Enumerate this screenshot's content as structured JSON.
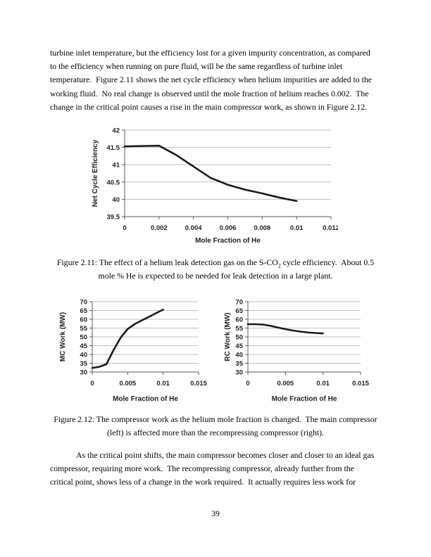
{
  "page": {
    "number": "39"
  },
  "body": {
    "para1_lines": [
      "turbine inlet temperature, but the efficiency lost for a given impurity concentration, as compared",
      "to the efficiency when running on pure fluid, will be the same regardless of turbine inlet",
      "temperature.  Figure 2.11 shows the net cycle efficiency when helium impurities are added to the",
      "working fluid.  No real change is observed until the mole fraction of helium reaches 0.002.  The",
      "change in the critical point causes a rise in the main compressor work, as shown in Figure 2.12."
    ],
    "para2_lines": [
      "As the critical point shifts, the main compressor becomes closer and closer to an ideal gas",
      "compressor, requiring more work.  The recompressing compressor, already further from the",
      "critical point, shows less of a change in the work required.  It actually requires less work for"
    ]
  },
  "figure_2_11": {
    "caption_line1_pre": "Figure 2.11: The effect of a helium leak detection gas on the S-CO",
    "caption_sub": "2",
    "caption_line1_post": " cycle efficiency.  About 0.5",
    "caption_line2": "mole % He is expected to be needed for leak detection in a large plant."
  },
  "figure_2_12": {
    "caption_line1": "Figure 2.12: The compressor work as the helium mole fraction is changed.  The main compressor",
    "caption_line2": "(left) is affected more than the recompressing compressor (right)."
  },
  "chart_data": [
    {
      "type": "line",
      "title": "",
      "xlabel": "Mole Fraction of He",
      "ylabel": "Net Cycle Efficiency",
      "xlim": [
        0,
        0.012
      ],
      "ylim": [
        39.5,
        42
      ],
      "x_ticks": [
        0,
        0.002,
        0.004,
        0.006,
        0.008,
        0.01,
        0.012
      ],
      "x_tick_labels": [
        "0",
        "0.002",
        "0.004",
        "0.006",
        "0.008",
        "0.01",
        "0.012"
      ],
      "y_ticks": [
        39.5,
        40,
        40.5,
        41,
        41.5,
        42
      ],
      "y_tick_labels": [
        "39.5",
        "40",
        "40.5",
        "41",
        "41.5",
        "42"
      ],
      "x": [
        0,
        0.001,
        0.002,
        0.003,
        0.004,
        0.005,
        0.006,
        0.007,
        0.008,
        0.009,
        0.01
      ],
      "y": [
        41.53,
        41.54,
        41.55,
        41.28,
        40.95,
        40.62,
        40.42,
        40.28,
        40.17,
        40.05,
        39.95
      ],
      "grid": true,
      "legend": false,
      "colors": {
        "line": "#1a1a1a",
        "grid": "#bfbfbf",
        "axis": "#595959"
      }
    },
    {
      "type": "line",
      "title": "",
      "xlabel": "Mole Fraction of He",
      "ylabel": "MC Work (MW)",
      "xlim": [
        0,
        0.015
      ],
      "ylim": [
        30,
        70
      ],
      "x_ticks": [
        0,
        0.005,
        0.01,
        0.015
      ],
      "x_tick_labels": [
        "0",
        "0.005",
        "0.01",
        "0.015"
      ],
      "y_ticks": [
        30,
        35,
        40,
        45,
        50,
        55,
        60,
        65,
        70
      ],
      "y_tick_labels": [
        "30",
        "35",
        "40",
        "45",
        "50",
        "55",
        "60",
        "65",
        "70"
      ],
      "x": [
        0,
        0.001,
        0.002,
        0.003,
        0.004,
        0.005,
        0.006,
        0.007,
        0.008,
        0.009,
        0.01
      ],
      "y": [
        32.3,
        33,
        34.5,
        42.5,
        49.5,
        54.5,
        57.3,
        59.4,
        61.4,
        63.5,
        65.5
      ],
      "grid": true,
      "legend": false,
      "colors": {
        "line": "#1a1a1a",
        "grid": "#bfbfbf",
        "axis": "#595959"
      }
    },
    {
      "type": "line",
      "title": "",
      "xlabel": "Mole Fraction of He",
      "ylabel": "RC Work (MW)",
      "xlim": [
        0,
        0.015
      ],
      "ylim": [
        30,
        70
      ],
      "x_ticks": [
        0,
        0.005,
        0.01,
        0.015
      ],
      "x_tick_labels": [
        "0",
        "0.005",
        "0.01",
        "0.015"
      ],
      "y_ticks": [
        30,
        35,
        40,
        45,
        50,
        55,
        60,
        65,
        70
      ],
      "y_tick_labels": [
        "30",
        "35",
        "40",
        "45",
        "50",
        "55",
        "60",
        "65",
        "70"
      ],
      "x": [
        0,
        0.001,
        0.002,
        0.003,
        0.004,
        0.005,
        0.006,
        0.007,
        0.008,
        0.009,
        0.01
      ],
      "y": [
        57.2,
        57.2,
        57,
        56.3,
        55.3,
        54.4,
        53.6,
        53,
        52.5,
        52.2,
        52
      ],
      "grid": true,
      "legend": false,
      "colors": {
        "line": "#1a1a1a",
        "grid": "#bfbfbf",
        "axis": "#595959"
      }
    }
  ]
}
